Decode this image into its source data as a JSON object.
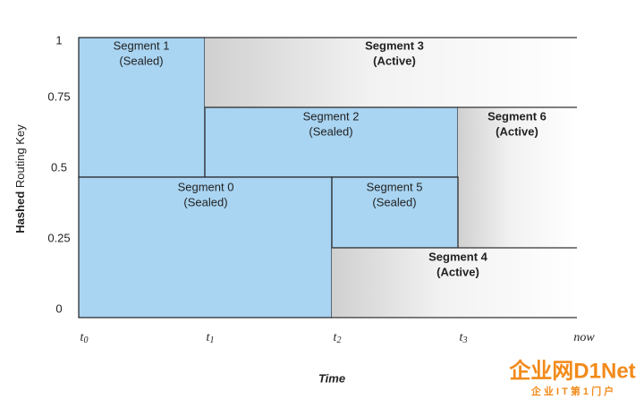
{
  "y_axis": {
    "title_bold": "Hashed",
    "title_rest": " Routing Key",
    "ticks": [
      "1",
      "0.75",
      "0.5",
      "0.25",
      "0"
    ]
  },
  "x_axis": {
    "title": "Time",
    "ticks": [
      {
        "base": "t",
        "sub": "0"
      },
      {
        "base": "t",
        "sub": "1"
      },
      {
        "base": "t",
        "sub": "2"
      },
      {
        "base": "t",
        "sub": "3"
      },
      {
        "base": "now",
        "sub": ""
      }
    ]
  },
  "segments": [
    {
      "name": "Segment 1",
      "state": "(Sealed)"
    },
    {
      "name": "Segment 3",
      "state": "(Active)"
    },
    {
      "name": "Segment 2",
      "state": "(Sealed)"
    },
    {
      "name": "Segment 6",
      "state": "(Active)"
    },
    {
      "name": "Segment 0",
      "state": "(Sealed)"
    },
    {
      "name": "Segment 5",
      "state": "(Sealed)"
    },
    {
      "name": "Segment 4",
      "state": "(Active)"
    }
  ],
  "watermark": {
    "brand": "企业网D1Net",
    "tagline": "企 业 I T 第 1 门 户"
  }
}
